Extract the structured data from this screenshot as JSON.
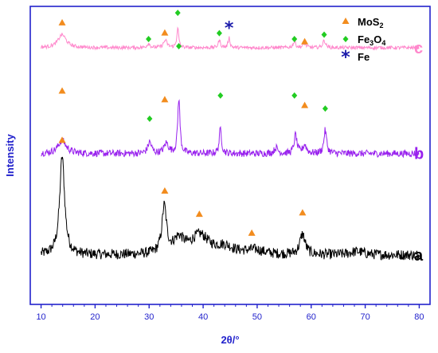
{
  "chart_data": {
    "type": "line",
    "xlabel": "2θ/°",
    "ylabel": "Intensity",
    "xlim": [
      8,
      82
    ],
    "ylim": [
      0,
      1
    ],
    "x_ticks": [
      10,
      20,
      30,
      40,
      50,
      60,
      70,
      80
    ],
    "y_ticks_shown": false,
    "legend": {
      "placement": "top-right",
      "entries": [
        {
          "marker": "triangle",
          "color": "#f28c1e",
          "label": "MoS",
          "sub1": "2",
          "sub2": "",
          "label_tail": ""
        },
        {
          "marker": "diamond",
          "color": "#22cc22",
          "label": "Fe",
          "sub1": "3",
          "label_mid": "O",
          "sub2": "4",
          "label_tail": ""
        },
        {
          "marker": "star",
          "color": "#1a1aaa",
          "label": "Fe",
          "sub1": "",
          "label_mid": "",
          "sub2": "",
          "label_tail": ""
        }
      ]
    },
    "series": [
      {
        "name": "a",
        "color": "#000000",
        "baseline": 0.17,
        "peaks": [
          {
            "x": 13.9,
            "h": 0.34,
            "w": 0.55
          },
          {
            "x": 32.8,
            "h": 0.16,
            "w": 0.5
          },
          {
            "x": 35.5,
            "h": 0.05,
            "w": 1.2
          },
          {
            "x": 39.4,
            "h": 0.065,
            "w": 2.0
          },
          {
            "x": 44.0,
            "h": 0.025,
            "w": 2.0
          },
          {
            "x": 49.5,
            "h": 0.015,
            "w": 2.0
          },
          {
            "x": 58.4,
            "h": 0.07,
            "w": 0.6
          },
          {
            "x": 68.5,
            "h": 0.012,
            "w": 1.5
          }
        ],
        "noise": 0.018,
        "markers": [
          {
            "x": 13.9,
            "y": 0.565,
            "kind": "triangle"
          },
          {
            "x": 32.9,
            "y": 0.39,
            "kind": "triangle"
          },
          {
            "x": 39.3,
            "y": 0.31,
            "kind": "triangle"
          },
          {
            "x": 49.0,
            "y": 0.245,
            "kind": "triangle"
          },
          {
            "x": 58.4,
            "y": 0.315,
            "kind": "triangle"
          }
        ]
      },
      {
        "name": "b",
        "color": "#9922ee",
        "baseline": 0.52,
        "peaks": [
          {
            "x": 13.9,
            "h": 0.045,
            "w": 0.9
          },
          {
            "x": 30.1,
            "h": 0.04,
            "w": 0.4
          },
          {
            "x": 33.2,
            "h": 0.035,
            "w": 0.5
          },
          {
            "x": 35.5,
            "h": 0.19,
            "w": 0.25
          },
          {
            "x": 43.2,
            "h": 0.085,
            "w": 0.25
          },
          {
            "x": 53.5,
            "h": 0.02,
            "w": 0.4
          },
          {
            "x": 57.1,
            "h": 0.065,
            "w": 0.3
          },
          {
            "x": 58.8,
            "h": 0.03,
            "w": 0.4
          },
          {
            "x": 62.6,
            "h": 0.08,
            "w": 0.3
          }
        ],
        "noise": 0.012,
        "markers": [
          {
            "x": 13.9,
            "y": 0.735,
            "kind": "triangle"
          },
          {
            "x": 30.1,
            "y": 0.64,
            "kind": "diamond"
          },
          {
            "x": 32.9,
            "y": 0.705,
            "kind": "triangle"
          },
          {
            "x": 35.5,
            "y": 0.89,
            "kind": "diamond"
          },
          {
            "x": 43.2,
            "y": 0.72,
            "kind": "diamond"
          },
          {
            "x": 56.9,
            "y": 0.72,
            "kind": "diamond"
          },
          {
            "x": 58.8,
            "y": 0.685,
            "kind": "triangle"
          },
          {
            "x": 62.6,
            "y": 0.675,
            "kind": "diamond"
          }
        ]
      },
      {
        "name": "c",
        "color": "#ff88cc",
        "baseline": 0.885,
        "peaks": [
          {
            "x": 13.9,
            "h": 0.045,
            "w": 0.9
          },
          {
            "x": 29.9,
            "h": 0.015,
            "w": 0.3
          },
          {
            "x": 33.0,
            "h": 0.025,
            "w": 0.4
          },
          {
            "x": 35.3,
            "h": 0.07,
            "w": 0.2
          },
          {
            "x": 43.0,
            "h": 0.025,
            "w": 0.25
          },
          {
            "x": 44.8,
            "h": 0.035,
            "w": 0.2
          },
          {
            "x": 56.9,
            "h": 0.02,
            "w": 0.3
          },
          {
            "x": 58.8,
            "h": 0.015,
            "w": 0.3
          },
          {
            "x": 62.4,
            "h": 0.025,
            "w": 0.3
          }
        ],
        "noise": 0.006,
        "markers": [
          {
            "x": 13.9,
            "y": 0.97,
            "kind": "triangle"
          },
          {
            "x": 29.9,
            "y": 0.915,
            "kind": "diamond"
          },
          {
            "x": 32.9,
            "y": 0.935,
            "kind": "triangle"
          },
          {
            "x": 35.3,
            "y": 1.005,
            "kind": "diamond"
          },
          {
            "x": 43.0,
            "y": 0.935,
            "kind": "diamond"
          },
          {
            "x": 44.8,
            "y": 0.955,
            "kind": "star"
          },
          {
            "x": 56.9,
            "y": 0.915,
            "kind": "diamond"
          },
          {
            "x": 58.8,
            "y": 0.905,
            "kind": "triangle"
          },
          {
            "x": 62.4,
            "y": 0.93,
            "kind": "diamond"
          }
        ]
      }
    ]
  },
  "colors": {
    "axis": "#2222cc",
    "triangle": "#f28c1e",
    "diamond": "#22cc22",
    "star": "#1a1aaa"
  }
}
